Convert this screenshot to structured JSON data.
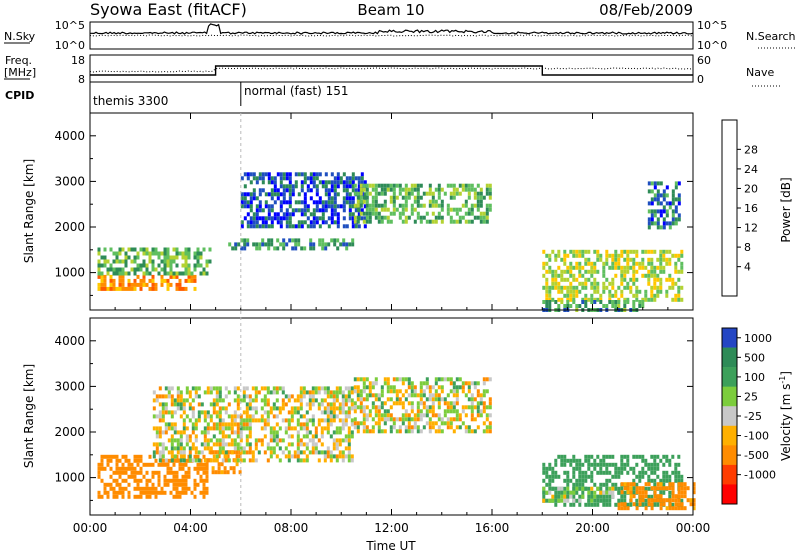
{
  "header": {
    "station": "Syowa East (fitACF)",
    "beam": "Beam 10",
    "date": "08/Feb/2009"
  },
  "panels": {
    "noise": {
      "left_label": "N.Sky",
      "right_label": "N.Search",
      "left_ticks": [
        "10^5",
        "10^0"
      ],
      "right_ticks": [
        "10^5",
        "10^0"
      ]
    },
    "freq": {
      "left_label_line1": "Freq.",
      "left_label_line2": "[MHz]",
      "right_label": "Nave",
      "left_ticks": [
        "18",
        "8"
      ],
      "right_ticks": [
        "60",
        "0"
      ]
    },
    "cpid": {
      "label": "CPID",
      "segments": [
        {
          "label": "themis 3300",
          "start_hour": 0.0
        },
        {
          "label": "normal (fast) 151",
          "start_hour": 6.0
        }
      ]
    }
  },
  "colorbars": {
    "power": {
      "title": "Power [dB]",
      "tick_labels": [
        "4",
        "8",
        "12",
        "16",
        "20",
        "24",
        "28"
      ],
      "colors": [
        "#0000ff",
        "#1f4fbf",
        "#2e8b57",
        "#5fbf5f",
        "#b4d232",
        "#ffc800",
        "#ff8c00",
        "#ff5a00",
        "#ff0000"
      ]
    },
    "velocity": {
      "title_main": "Velocity [m s",
      "title_sup": "-1",
      "title_end": "]",
      "tick_labels": [
        "1000",
        "500",
        "100",
        "25",
        "-25",
        "-100",
        "-500",
        "-1000"
      ],
      "colors": [
        "#2446c4",
        "#2e8b57",
        "#3ca05a",
        "#7ccd3c",
        "#c8c8c8",
        "#ffb000",
        "#ff8c00",
        "#ff3c00",
        "#ff0000"
      ]
    }
  },
  "chart_data": [
    {
      "type": "heatmap",
      "title": "Beam 10",
      "xlabel": "Time UT",
      "ylabel": "Slant Range [km]",
      "xlim": [
        0,
        24
      ],
      "ylim": [
        180,
        4500
      ],
      "x_tick_labels": [
        "00:00",
        "04:00",
        "08:00",
        "12:00",
        "16:00",
        "20:00",
        "00:00"
      ],
      "x_tick_hours": [
        0,
        4,
        8,
        12,
        16,
        20,
        24
      ],
      "y_tick_labels": [
        "1000",
        "2000",
        "3000",
        "4000"
      ],
      "y_tick_values": [
        1000,
        2000,
        3000,
        4000
      ],
      "quantity": "Power [dB]",
      "regions": [
        {
          "t0": 0.3,
          "t1": 4.2,
          "r0": 600,
          "r1": 950,
          "value": 26
        },
        {
          "t0": 0.3,
          "t1": 4.8,
          "r0": 1000,
          "r1": 1550,
          "value": 14
        },
        {
          "t0": 5.5,
          "t1": 10.5,
          "r0": 1500,
          "r1": 1750,
          "value": 10
        },
        {
          "t0": 6.0,
          "t1": 11.0,
          "r0": 2000,
          "r1": 3200,
          "value": 6
        },
        {
          "t0": 10.5,
          "t1": 15.9,
          "r0": 2100,
          "r1": 2950,
          "value": 14
        },
        {
          "t0": 18.0,
          "t1": 23.5,
          "r0": 400,
          "r1": 1500,
          "value": 18
        },
        {
          "t0": 18.0,
          "t1": 22.0,
          "r0": 200,
          "r1": 400,
          "value": 12
        },
        {
          "t0": 22.2,
          "t1": 23.5,
          "r0": 2000,
          "r1": 3000,
          "value": 8
        }
      ]
    },
    {
      "type": "heatmap",
      "xlabel": "Time UT",
      "ylabel": "Slant Range [km]",
      "xlim": [
        0,
        24
      ],
      "ylim": [
        180,
        4500
      ],
      "x_tick_labels": [
        "00:00",
        "04:00",
        "08:00",
        "12:00",
        "16:00",
        "20:00",
        "00:00"
      ],
      "x_tick_hours": [
        0,
        4,
        8,
        12,
        16,
        20,
        24
      ],
      "y_tick_labels": [
        "1000",
        "2000",
        "3000",
        "4000"
      ],
      "y_tick_values": [
        1000,
        2000,
        3000,
        4000
      ],
      "quantity": "Velocity [m s-1]",
      "regions": [
        {
          "t0": 0.3,
          "t1": 4.6,
          "r0": 600,
          "r1": 1500,
          "value": -300
        },
        {
          "t0": 4.6,
          "t1": 6.0,
          "r0": 1100,
          "r1": 1600,
          "value": -200
        },
        {
          "t0": 2.5,
          "t1": 10.5,
          "r0": 1400,
          "r1": 3000,
          "value": 0
        },
        {
          "t0": 10.5,
          "t1": 15.9,
          "r0": 2000,
          "r1": 3200,
          "value": 0
        },
        {
          "t0": 18.0,
          "t1": 23.5,
          "r0": 400,
          "r1": 1500,
          "value": 300
        },
        {
          "t0": 21.0,
          "t1": 24.0,
          "r0": 300,
          "r1": 900,
          "value": -200
        },
        {
          "t0": 18.0,
          "t1": 21.0,
          "r0": 500,
          "r1": 800,
          "value": 60
        }
      ]
    }
  ]
}
